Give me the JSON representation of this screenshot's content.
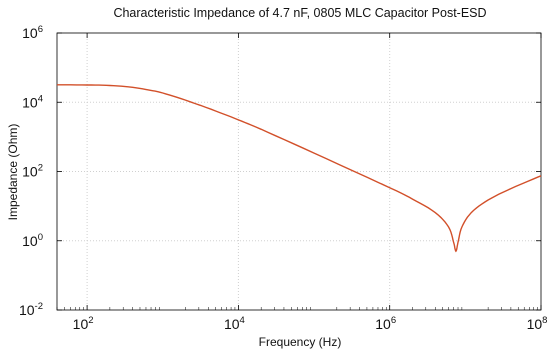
{
  "chart_data": {
    "type": "line",
    "title": "Characteristic Impedance of 4.7 nF, 0805 MLC Capacitor Post-ESD",
    "xlabel": "Frequency (Hz)",
    "ylabel": "Impedance (Ohm)",
    "x_scale": "log",
    "y_scale": "log",
    "xlim": [
      40,
      100000000
    ],
    "ylim": [
      0.01,
      1000000
    ],
    "grid": true,
    "x_ticks": [
      {
        "value": 100,
        "base": "10",
        "exp": "2"
      },
      {
        "value": 10000,
        "base": "10",
        "exp": "4"
      },
      {
        "value": 1000000,
        "base": "10",
        "exp": "6"
      },
      {
        "value": 100000000,
        "base": "10",
        "exp": "8"
      }
    ],
    "y_ticks": [
      {
        "value": 0.01,
        "base": "10",
        "exp": "-2"
      },
      {
        "value": 1,
        "base": "10",
        "exp": "0"
      },
      {
        "value": 100,
        "base": "10",
        "exp": "2"
      },
      {
        "value": 10000,
        "base": "10",
        "exp": "4"
      },
      {
        "value": 1000000,
        "base": "10",
        "exp": "6"
      }
    ],
    "series": [
      {
        "color": "#d2502a",
        "x": [
          40,
          100,
          200,
          400,
          700,
          1000,
          2000,
          5000,
          10000,
          20000,
          100000,
          1000000,
          2000000,
          4000000,
          6000000,
          7000000,
          7500000,
          8000000,
          9000000,
          12000000,
          20000000,
          40000000,
          100000000
        ],
        "y": [
          32000,
          31500,
          30500,
          27000,
          22000,
          18500,
          11500,
          5600,
          3100,
          1650,
          340,
          34,
          16,
          6.5,
          2.5,
          0.9,
          0.5,
          0.9,
          2.5,
          6.5,
          15,
          32,
          75
        ]
      }
    ]
  }
}
